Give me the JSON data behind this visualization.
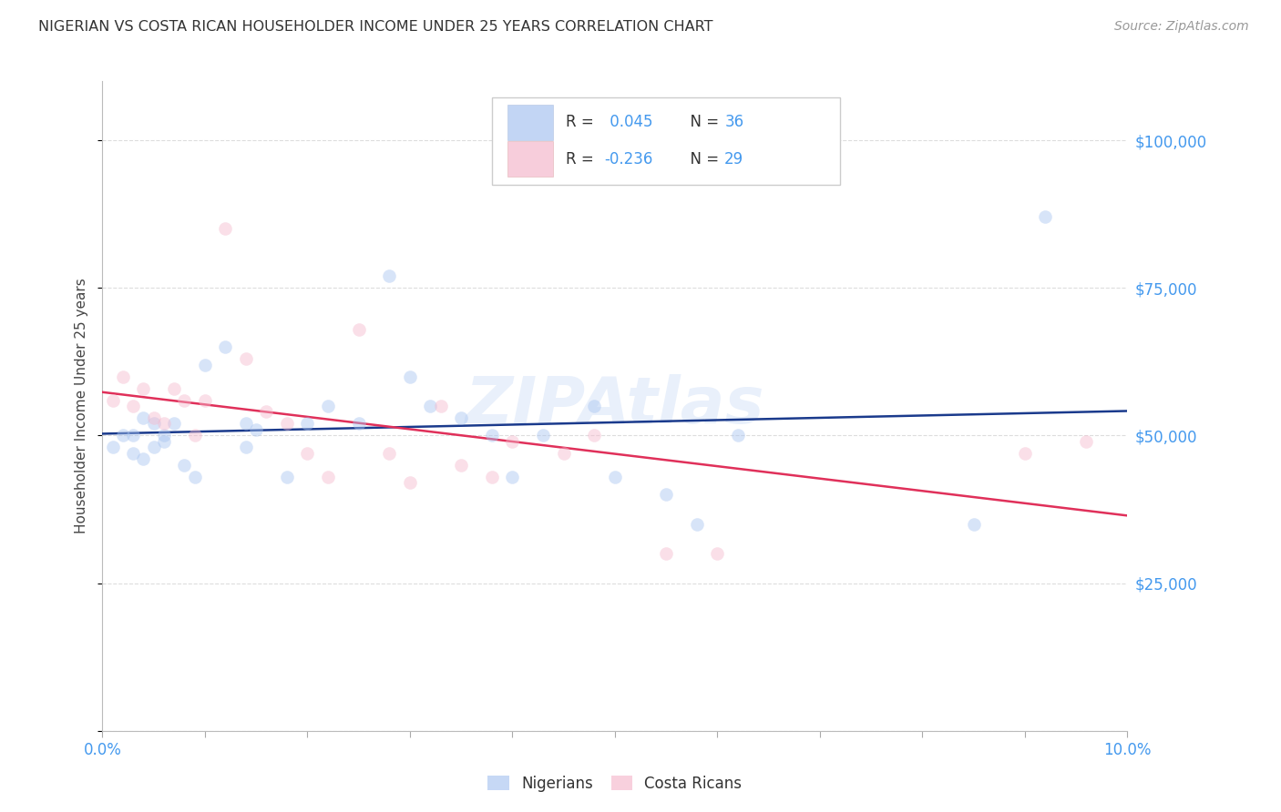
{
  "title": "NIGERIAN VS COSTA RICAN HOUSEHOLDER INCOME UNDER 25 YEARS CORRELATION CHART",
  "source": "Source: ZipAtlas.com",
  "ylabel": "Householder Income Under 25 years",
  "watermark": "ZIPAtlas",
  "nigerian_x": [
    0.001,
    0.002,
    0.003,
    0.003,
    0.004,
    0.004,
    0.005,
    0.005,
    0.006,
    0.006,
    0.007,
    0.008,
    0.009,
    0.01,
    0.012,
    0.014,
    0.014,
    0.015,
    0.018,
    0.02,
    0.022,
    0.025,
    0.028,
    0.03,
    0.032,
    0.035,
    0.038,
    0.04,
    0.043,
    0.048,
    0.05,
    0.055,
    0.058,
    0.062,
    0.085,
    0.092
  ],
  "nigerian_y": [
    48000,
    50000,
    50000,
    47000,
    46000,
    53000,
    52000,
    48000,
    50000,
    49000,
    52000,
    45000,
    43000,
    62000,
    65000,
    52000,
    48000,
    51000,
    43000,
    52000,
    55000,
    52000,
    77000,
    60000,
    55000,
    53000,
    50000,
    43000,
    50000,
    55000,
    43000,
    40000,
    35000,
    50000,
    35000,
    87000
  ],
  "costarican_x": [
    0.001,
    0.002,
    0.003,
    0.004,
    0.005,
    0.006,
    0.007,
    0.008,
    0.009,
    0.01,
    0.012,
    0.014,
    0.016,
    0.018,
    0.02,
    0.022,
    0.025,
    0.028,
    0.03,
    0.033,
    0.035,
    0.038,
    0.04,
    0.045,
    0.048,
    0.055,
    0.06,
    0.09,
    0.096
  ],
  "costarican_y": [
    56000,
    60000,
    55000,
    58000,
    53000,
    52000,
    58000,
    56000,
    50000,
    56000,
    85000,
    63000,
    54000,
    52000,
    47000,
    43000,
    68000,
    47000,
    42000,
    55000,
    45000,
    43000,
    49000,
    47000,
    50000,
    30000,
    30000,
    47000,
    49000
  ],
  "nigerian_color": "#a8c4f0",
  "costarican_color": "#f5b8cc",
  "nigerian_line_color": "#1a3a8c",
  "costarican_line_color": "#e0305a",
  "xlim": [
    0.0,
    0.1
  ],
  "ylim": [
    0,
    110000
  ],
  "ytick_vals": [
    0,
    25000,
    50000,
    75000,
    100000
  ],
  "ytick_labels": [
    "",
    "$25,000",
    "$50,000",
    "$75,000",
    "$100,000"
  ],
  "xtick_vals": [
    0.0,
    0.01,
    0.02,
    0.03,
    0.04,
    0.05,
    0.06,
    0.07,
    0.08,
    0.09,
    0.1
  ],
  "background_color": "#ffffff",
  "title_color": "#333333",
  "tick_color": "#4499ee",
  "grid_color": "#dddddd",
  "marker_size": 110,
  "marker_alpha": 0.45,
  "line_width": 1.8,
  "legend_r_color": "#4499ee",
  "legend_label_color": "#333333"
}
